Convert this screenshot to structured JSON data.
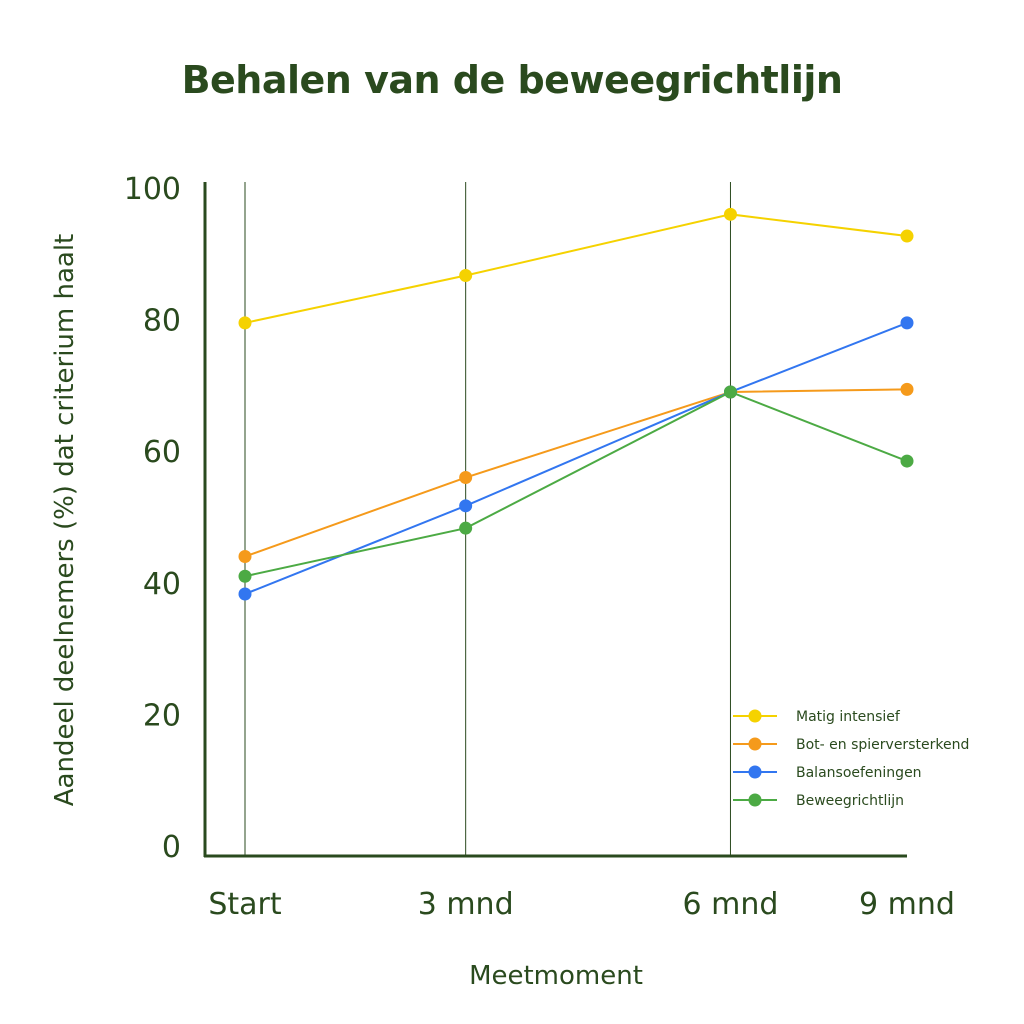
{
  "chart_data": {
    "type": "line",
    "title": "Behalen van de beweegrichtlijn",
    "xlabel": "Meetmoment",
    "ylabel": "Aandeel deelnemers (%) dat criterium haalt",
    "categories": [
      "Start",
      "3 mnd",
      "6 mnd",
      "9 mnd"
    ],
    "x_positions": [
      0,
      3,
      6.6,
      9
    ],
    "ylim": [
      0,
      100
    ],
    "yticks": [
      0,
      20,
      40,
      60,
      80,
      100
    ],
    "grid": "vertical lines at measurement moments",
    "legend_position": "bottom-right",
    "series": [
      {
        "name": "Matig intensief",
        "color": "#f5d200",
        "values": [
          79.5,
          86.7,
          96,
          92.7
        ]
      },
      {
        "name": "Bot- en spierversterkend",
        "color": "#f59a1b",
        "values": [
          44,
          56,
          69,
          69.4
        ]
      },
      {
        "name": "Balansoefeningen",
        "color": "#3276f0",
        "values": [
          38.3,
          51.7,
          69,
          79.5
        ]
      },
      {
        "name": "Beweegrichtlijn",
        "color": "#4caa44",
        "values": [
          41,
          48.3,
          69,
          58.5
        ]
      }
    ],
    "axis_color": "#2a4a1e"
  }
}
